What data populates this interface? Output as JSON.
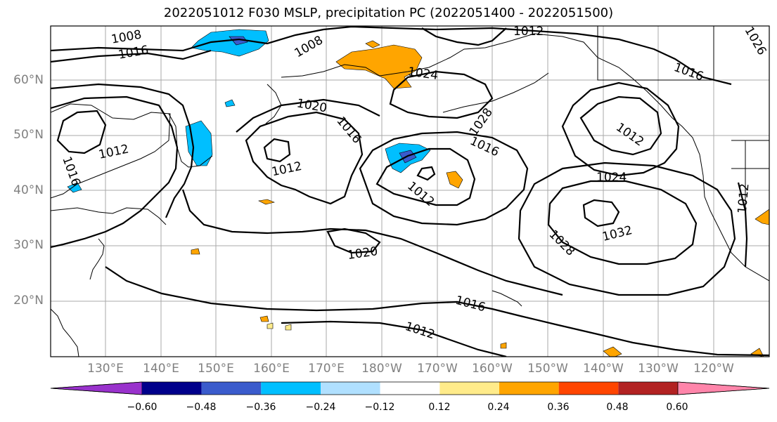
{
  "title": "2022051012 F030 MSLP, precipitation PC (2022051400 - 2022051500)",
  "lat_labels": [
    "60°N",
    "50°N",
    "40°N",
    "30°N",
    "20°N"
  ],
  "lon_labels": [
    "130°E",
    "140°E",
    "150°E",
    "160°E",
    "170°E",
    "180°W",
    "170°W",
    "160°W",
    "150°W",
    "140°W",
    "130°W",
    "120°W"
  ],
  "contour_labels": [
    "1008",
    "1016",
    "1008",
    "1012",
    "1026",
    "1024",
    "1016",
    "1020",
    "1016",
    "1012",
    "1028",
    "1016",
    "1012",
    "1012",
    "1024",
    "1016",
    "1012",
    "1032",
    "1028",
    "1020",
    "1016",
    "1012",
    "1012"
  ],
  "colorbar": {
    "ticks": [
      "−0.60",
      "−0.48",
      "−0.36",
      "−0.24",
      "−0.12",
      "0.12",
      "0.24",
      "0.36",
      "0.48",
      "0.60"
    ],
    "colors": [
      "#9932cc",
      "#00008b",
      "#3a5bcc",
      "#00bfff",
      "#b0e0ff",
      "#ffffff",
      "#ffeb8a",
      "#ffa500",
      "#ff4500",
      "#b22222",
      "#ff85aa"
    ]
  }
}
